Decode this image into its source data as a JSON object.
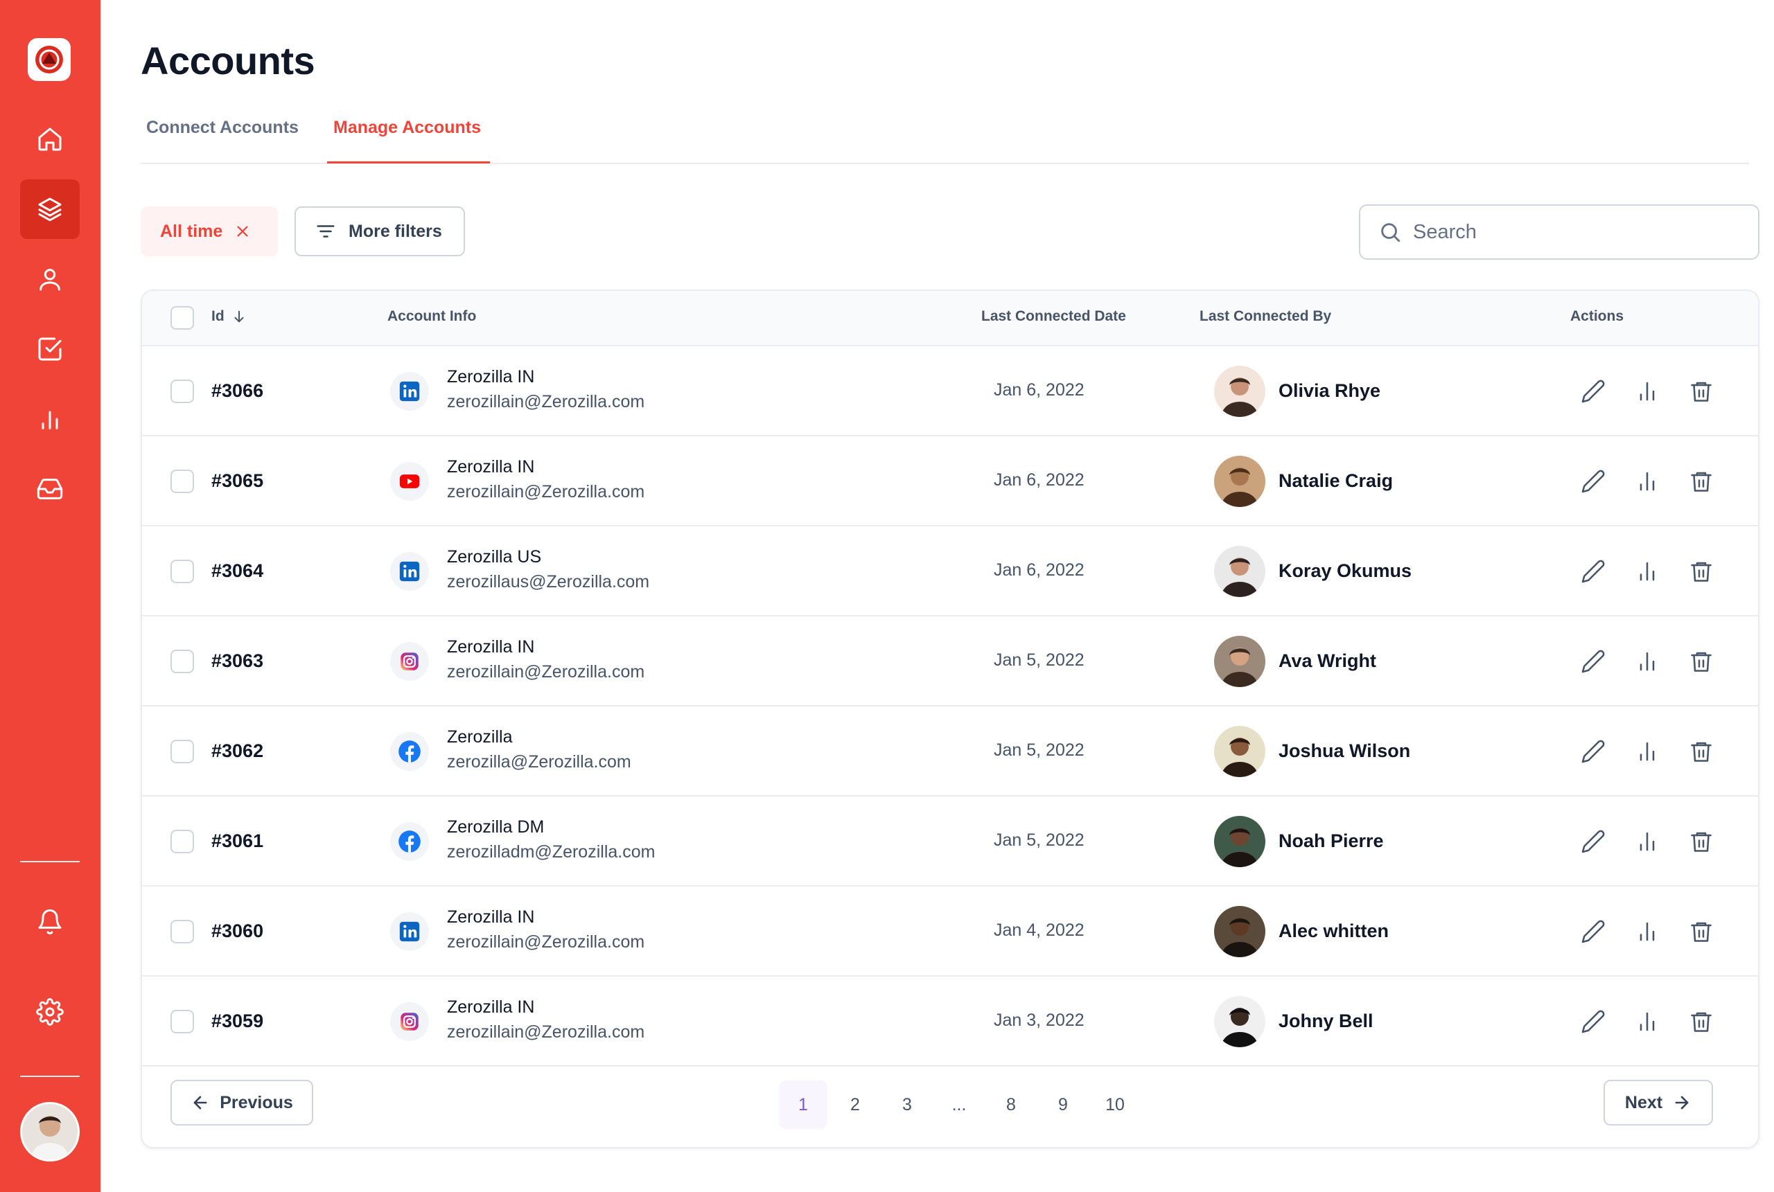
{
  "page": {
    "title": "Accounts"
  },
  "tabs": [
    {
      "label": "Connect Accounts",
      "active": false
    },
    {
      "label": "Manage Accounts",
      "active": true
    }
  ],
  "filters": {
    "chip_label": "All time",
    "more_filters_label": "More filters"
  },
  "search": {
    "placeholder": "Search",
    "value": ""
  },
  "table": {
    "columns": {
      "id": "Id",
      "account_info": "Account Info",
      "last_connected_date": "Last Connected Date",
      "last_connected_by": "Last Connected By",
      "actions": "Actions"
    },
    "rows": [
      {
        "id": "#3066",
        "platform": "linkedin",
        "account_name": "Zerozilla IN",
        "account_email": "zerozillain@Zerozilla.com",
        "date": "Jan 6, 2022",
        "person": "Olivia Rhye"
      },
      {
        "id": "#3065",
        "platform": "youtube",
        "account_name": "Zerozilla IN",
        "account_email": "zerozillain@Zerozilla.com",
        "date": "Jan 6, 2022",
        "person": "Natalie Craig"
      },
      {
        "id": "#3064",
        "platform": "linkedin",
        "account_name": "Zerozilla US",
        "account_email": "zerozillaus@Zerozilla.com",
        "date": "Jan 6, 2022",
        "person": "Koray Okumus"
      },
      {
        "id": "#3063",
        "platform": "instagram",
        "account_name": "Zerozilla IN",
        "account_email": "zerozillain@Zerozilla.com",
        "date": "Jan 5, 2022",
        "person": "Ava Wright"
      },
      {
        "id": "#3062",
        "platform": "facebook",
        "account_name": "Zerozilla",
        "account_email": "zerozilla@Zerozilla.com",
        "date": "Jan 5, 2022",
        "person": "Joshua Wilson"
      },
      {
        "id": "#3061",
        "platform": "facebook",
        "account_name": "Zerozilla DM",
        "account_email": "zerozilladm@Zerozilla.com",
        "date": "Jan 5, 2022",
        "person": "Noah Pierre"
      },
      {
        "id": "#3060",
        "platform": "linkedin",
        "account_name": "Zerozilla IN",
        "account_email": "zerozillain@Zerozilla.com",
        "date": "Jan 4, 2022",
        "person": "Alec whitten"
      },
      {
        "id": "#3059",
        "platform": "instagram",
        "account_name": "Zerozilla IN",
        "account_email": "zerozillain@Zerozilla.com",
        "date": "Jan 3, 2022",
        "person": "Johny Bell"
      }
    ]
  },
  "pagination": {
    "previous_label": "Previous",
    "next_label": "Next",
    "pages": [
      "1",
      "2",
      "3",
      "...",
      "8",
      "9",
      "10"
    ],
    "current": "1"
  },
  "colors": {
    "accent": "#f04438",
    "accent_dark": "#d92d20",
    "page_active": "#7f56d9",
    "linkedin": "#0a66c2",
    "youtube": "#ff0000",
    "facebook": "#1877f2"
  },
  "icons": {
    "sidebar": [
      "home-icon",
      "layers-icon",
      "user-icon",
      "check-square-icon",
      "bar-chart-icon",
      "inbox-icon",
      "bell-icon",
      "settings-icon"
    ],
    "row_actions": [
      "edit-icon",
      "analytics-icon",
      "trash-icon"
    ]
  }
}
